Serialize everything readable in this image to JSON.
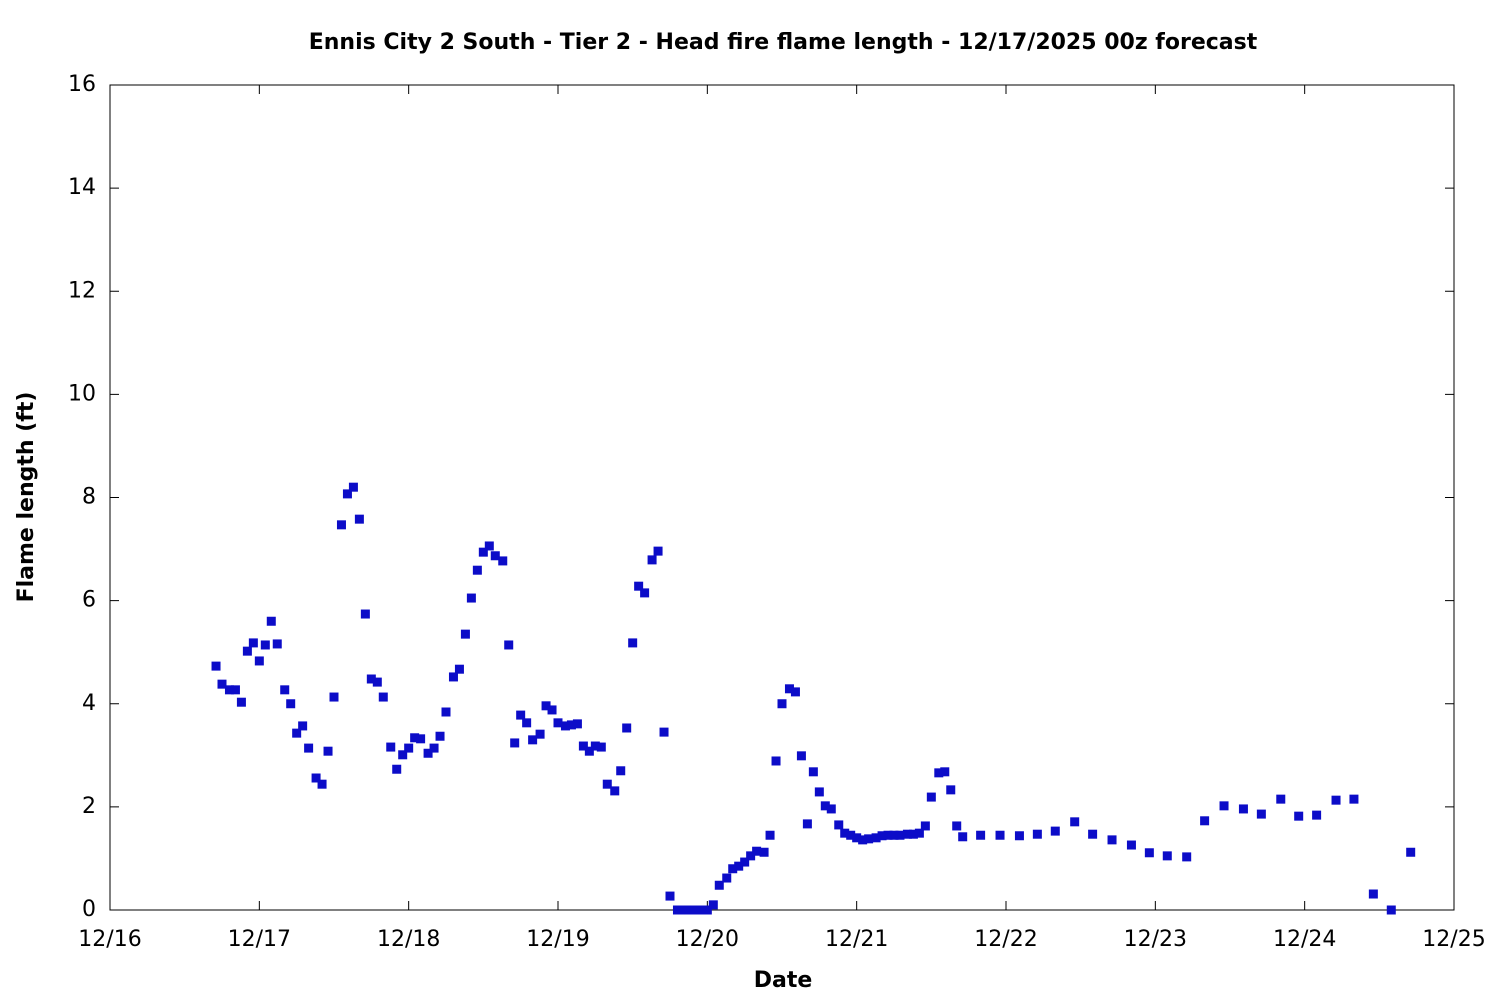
{
  "chart_data": {
    "type": "scatter",
    "title": "Ennis City 2 South - Tier 2 - Head fire flame length - 12/17/2025 00z forecast",
    "x_label": "Date",
    "y_label": "Flame length (ft)",
    "color": "#0c0cc8",
    "grid": false,
    "xlim": [
      16,
      25
    ],
    "xticks": [
      {
        "value": 16,
        "label": "12/16"
      },
      {
        "value": 17,
        "label": "12/17"
      },
      {
        "value": 18,
        "label": "12/18"
      },
      {
        "value": 19,
        "label": "12/19"
      },
      {
        "value": 20,
        "label": "12/20"
      },
      {
        "value": 21,
        "label": "12/21"
      },
      {
        "value": 22,
        "label": "12/22"
      },
      {
        "value": 23,
        "label": "12/23"
      },
      {
        "value": 24,
        "label": "12/24"
      },
      {
        "value": 25,
        "label": "12/25"
      }
    ],
    "ylim": [
      0,
      16
    ],
    "yticks": [
      0,
      2,
      4,
      6,
      8,
      10,
      12,
      14,
      16
    ],
    "x": [
      16.71,
      16.75,
      16.8,
      16.84,
      16.88,
      16.92,
      16.96,
      17.0,
      17.04,
      17.08,
      17.12,
      17.17,
      17.21,
      17.25,
      17.29,
      17.33,
      17.38,
      17.42,
      17.46,
      17.5,
      17.55,
      17.59,
      17.63,
      17.67,
      17.71,
      17.75,
      17.79,
      17.83,
      17.88,
      17.92,
      17.96,
      18.0,
      18.04,
      18.08,
      18.13,
      18.17,
      18.21,
      18.25,
      18.3,
      18.34,
      18.38,
      18.42,
      18.46,
      18.5,
      18.54,
      18.58,
      18.63,
      18.67,
      18.71,
      18.75,
      18.79,
      18.83,
      18.88,
      18.92,
      18.96,
      19.0,
      19.05,
      19.09,
      19.13,
      19.17,
      19.21,
      19.25,
      19.29,
      19.33,
      19.38,
      19.42,
      19.46,
      19.5,
      19.54,
      19.58,
      19.63,
      19.67,
      19.71,
      19.75,
      19.8,
      19.84,
      19.88,
      19.92,
      19.96,
      20.0,
      20.04,
      20.08,
      20.13,
      20.17,
      20.21,
      20.25,
      20.29,
      20.33,
      20.38,
      20.42,
      20.46,
      20.5,
      20.55,
      20.59,
      20.63,
      20.67,
      20.71,
      20.75,
      20.79,
      20.83,
      20.88,
      20.92,
      20.96,
      21.0,
      21.04,
      21.08,
      21.13,
      21.17,
      21.21,
      21.25,
      21.29,
      21.34,
      21.38,
      21.42,
      21.46,
      21.5,
      21.55,
      21.59,
      21.63,
      21.67,
      21.71,
      21.83,
      21.96,
      22.09,
      22.21,
      22.33,
      22.46,
      22.58,
      22.71,
      22.84,
      22.96,
      23.08,
      23.21,
      23.33,
      23.46,
      23.59,
      23.71,
      23.84,
      23.96,
      24.08,
      24.21,
      24.33,
      24.46,
      24.58,
      24.71
    ],
    "values": [
      4.73,
      4.38,
      4.27,
      4.27,
      4.03,
      5.02,
      5.18,
      4.83,
      5.14,
      5.6,
      5.16,
      4.27,
      4.0,
      3.43,
      3.57,
      3.14,
      2.56,
      2.44,
      3.08,
      4.13,
      7.47,
      8.07,
      8.2,
      7.58,
      5.74,
      4.48,
      4.42,
      4.13,
      3.16,
      2.73,
      3.01,
      3.14,
      3.34,
      3.32,
      3.04,
      3.14,
      3.37,
      3.84,
      4.52,
      4.67,
      5.35,
      6.05,
      6.59,
      6.94,
      7.06,
      6.87,
      6.77,
      5.14,
      3.24,
      3.78,
      3.63,
      3.3,
      3.41,
      3.96,
      3.88,
      3.63,
      3.57,
      3.59,
      3.61,
      3.18,
      3.08,
      3.18,
      3.16,
      2.44,
      2.31,
      2.7,
      3.53,
      5.18,
      6.28,
      6.15,
      6.79,
      6.96,
      3.45,
      0.27,
      0,
      0,
      0,
      0,
      0,
      0,
      0.1,
      0.48,
      0.62,
      0.8,
      0.85,
      0.93,
      1.05,
      1.14,
      1.12,
      1.45,
      2.89,
      4.0,
      4.29,
      4.23,
      2.99,
      1.67,
      2.68,
      2.29,
      2.02,
      1.96,
      1.65,
      1.49,
      1.45,
      1.4,
      1.36,
      1.38,
      1.4,
      1.44,
      1.45,
      1.45,
      1.45,
      1.47,
      1.47,
      1.49,
      1.63,
      2.19,
      2.66,
      2.68,
      2.33,
      1.63,
      1.42,
      1.45,
      1.45,
      1.44,
      1.47,
      1.53,
      1.71,
      1.47,
      1.36,
      1.26,
      1.11,
      1.05,
      1.03,
      1.73,
      2.02,
      1.96,
      1.86,
      2.15,
      1.82,
      1.84,
      2.13,
      2.15,
      0.31,
      0,
      1.12
    ]
  }
}
